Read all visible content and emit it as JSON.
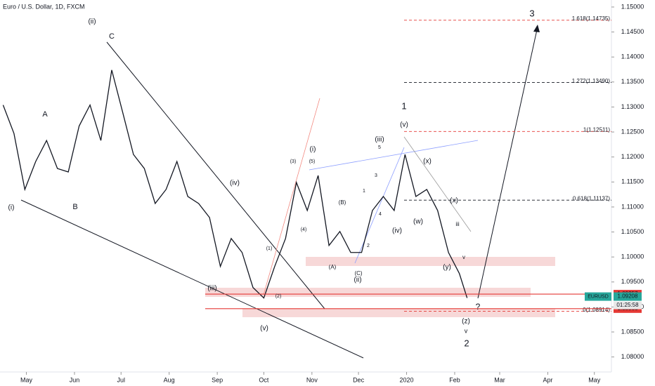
{
  "chart_data": {
    "type": "line",
    "title": "Euro / U.S. Dollar, 1D, FXCM",
    "x": [
      -15,
      -8,
      -1,
      6,
      13,
      20,
      27,
      34,
      41,
      48,
      55,
      62,
      69,
      76,
      83,
      90,
      97,
      104,
      111,
      118,
      125,
      132,
      139,
      146,
      153,
      160,
      167,
      174,
      181,
      188,
      195,
      202,
      209,
      216,
      223,
      230,
      237,
      244,
      251,
      258,
      265,
      272,
      279,
      284
    ],
    "series": [
      {
        "name": "EURUSD",
        "color": "#131722",
        "values": [
          1.1304,
          1.1247,
          1.1135,
          1.1191,
          1.1233,
          1.1177,
          1.117,
          1.1262,
          1.1304,
          1.1233,
          1.1374,
          1.129,
          1.1205,
          1.1177,
          1.1107,
          1.1135,
          1.1191,
          1.1121,
          1.1107,
          1.1079,
          1.0981,
          1.1037,
          1.1009,
          1.0939,
          1.0918,
          1.0981,
          1.1037,
          1.1149,
          1.1093,
          1.1163,
          1.1023,
          1.1051,
          1.1009,
          1.1009,
          1.1093,
          1.1121,
          1.1093,
          1.1205,
          1.1121,
          1.1135,
          1.1093,
          1.1009,
          1.0967,
          1.0918
        ]
      }
    ],
    "xlim": [
      -17,
      377
    ],
    "ylim": [
      1.077,
      1.1514
    ],
    "xticks": [
      {
        "value": 0,
        "label": "May"
      },
      {
        "value": 31,
        "label": "Jun"
      },
      {
        "value": 61,
        "label": "Jul"
      },
      {
        "value": 92,
        "label": "Aug"
      },
      {
        "value": 123,
        "label": "Sep"
      },
      {
        "value": 153,
        "label": "Oct"
      },
      {
        "value": 184,
        "label": "Nov"
      },
      {
        "value": 214,
        "label": "Dec"
      },
      {
        "value": 245,
        "label": "2020"
      },
      {
        "value": 276,
        "label": "Feb"
      },
      {
        "value": 305,
        "label": "Mar"
      },
      {
        "value": 336,
        "label": "Apr"
      },
      {
        "value": 366,
        "label": "May"
      }
    ],
    "yticks": [
      {
        "value": 1.08,
        "label": "1.08000"
      },
      {
        "value": 1.085,
        "label": "1.08500"
      },
      {
        "value": 1.09,
        "label": "1.09000"
      },
      {
        "value": 1.095,
        "label": "1.09500"
      },
      {
        "value": 1.1,
        "label": "1.10000"
      },
      {
        "value": 1.105,
        "label": "1.10500"
      },
      {
        "value": 1.11,
        "label": "1.11000"
      },
      {
        "value": 1.115,
        "label": "1.11500"
      },
      {
        "value": 1.12,
        "label": "1.12000"
      },
      {
        "value": 1.125,
        "label": "1.12500"
      },
      {
        "value": 1.13,
        "label": "1.13000"
      },
      {
        "value": 1.135,
        "label": "1.13500"
      },
      {
        "value": 1.14,
        "label": "1.14000"
      },
      {
        "value": 1.145,
        "label": "1.14500"
      },
      {
        "value": 1.15,
        "label": "1.15000"
      }
    ],
    "fib_levels": [
      {
        "label": "1.618(1.14735)",
        "value": 1.14735,
        "color": "#e53935"
      },
      {
        "label": "1.272(1.13490)",
        "value": 1.1349,
        "color": "#131722"
      },
      {
        "label": "1(1.12511)",
        "value": 1.12511,
        "color": "#e53935"
      },
      {
        "label": "0.618(1.11137)",
        "value": 1.11137,
        "color": "#131722"
      },
      {
        "label": "0(1.08914)",
        "value": 1.08914,
        "color": "#e53935"
      }
    ],
    "price_tags": [
      {
        "label": "1.09257",
        "value": 1.09257,
        "color": "#e53935"
      },
      {
        "label": "1.09208",
        "value": 1.09208,
        "color": "#26a69a"
      },
      {
        "label": "1.08966",
        "value": 1.08966,
        "color": "#e53935"
      }
    ],
    "symbol_tag": "EURUSD",
    "countdown": "01:25:58",
    "annotations": [
      "(ii)",
      "C",
      "A",
      "B",
      "(i)",
      "(iv)",
      "(iii)",
      "(v)",
      "(i)",
      "(iii)",
      "(v)",
      "1",
      "(ii)",
      "(iv)",
      "(x)",
      "(w)",
      "(x)",
      "(y)",
      "(z)",
      "v",
      "2",
      "3",
      "(A)",
      "(B)",
      "(C)",
      "(3)",
      "(5)",
      "(4)",
      "(1)",
      "(2)",
      "5",
      "3",
      "1",
      "4",
      "2",
      "?",
      "iii",
      "v"
    ]
  }
}
